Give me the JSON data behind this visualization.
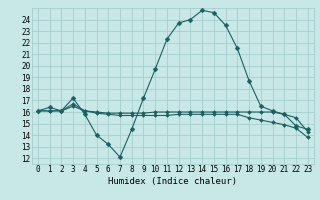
{
  "xlabel": "Humidex (Indice chaleur)",
  "background_color": "#c8e8e8",
  "grid_color": "#a0c8c8",
  "line_color": "#1a6060",
  "xlim": [
    -0.5,
    23.5
  ],
  "ylim": [
    11.5,
    25.0
  ],
  "yticks": [
    12,
    13,
    14,
    15,
    16,
    17,
    18,
    19,
    20,
    21,
    22,
    23,
    24
  ],
  "xticks": [
    0,
    1,
    2,
    3,
    4,
    5,
    6,
    7,
    8,
    9,
    10,
    11,
    12,
    13,
    14,
    15,
    16,
    17,
    18,
    19,
    20,
    21,
    22,
    23
  ],
  "line1_x": [
    0,
    1,
    2,
    3,
    4,
    5,
    6,
    7,
    8,
    9,
    10,
    11,
    12,
    13,
    14,
    15,
    16,
    17,
    18,
    19,
    20,
    21,
    22,
    23
  ],
  "line1_y": [
    16.1,
    16.4,
    16.1,
    17.2,
    15.8,
    14.0,
    13.2,
    12.1,
    14.5,
    17.2,
    19.7,
    22.3,
    23.7,
    24.0,
    24.8,
    24.6,
    23.5,
    21.5,
    18.7,
    16.5,
    16.1,
    15.8,
    14.8,
    14.5
  ],
  "line2_x": [
    0,
    1,
    2,
    3,
    4,
    5,
    6,
    7,
    8,
    9,
    10,
    11,
    12,
    13,
    14,
    15,
    16,
    17,
    18,
    19,
    20,
    21,
    22,
    23
  ],
  "line2_y": [
    16.1,
    16.1,
    16.1,
    16.5,
    16.1,
    15.9,
    15.8,
    15.7,
    15.7,
    15.7,
    15.7,
    15.7,
    15.8,
    15.8,
    15.8,
    15.8,
    15.8,
    15.8,
    15.5,
    15.3,
    15.1,
    14.9,
    14.6,
    13.8
  ],
  "line3_x": [
    0,
    1,
    2,
    3,
    4,
    5,
    6,
    7,
    8,
    9,
    10,
    11,
    12,
    13,
    14,
    15,
    16,
    17,
    18,
    19,
    20,
    21,
    22,
    23
  ],
  "line3_y": [
    16.1,
    16.1,
    16.1,
    16.7,
    16.1,
    16.0,
    15.9,
    15.9,
    15.9,
    15.9,
    16.0,
    16.0,
    16.0,
    16.0,
    16.0,
    16.0,
    16.0,
    16.0,
    16.0,
    16.0,
    16.0,
    15.8,
    15.5,
    14.3
  ],
  "tick_fontsize": 5.5,
  "xlabel_fontsize": 6.5,
  "marker": "D",
  "markersize1": 2.5,
  "markersize2": 2.0,
  "linewidth": 0.8
}
